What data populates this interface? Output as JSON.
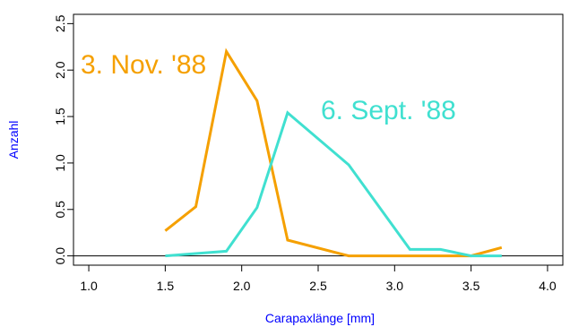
{
  "chart_data": {
    "type": "line",
    "xlabel": "Carapaxlänge [mm]",
    "ylabel": "Anzahl",
    "xlim": [
      0.9,
      4.1
    ],
    "ylim": [
      -0.1,
      2.6
    ],
    "x_ticks": [
      "1.0",
      "1.5",
      "2.0",
      "2.5",
      "3.0",
      "3.5",
      "4.0"
    ],
    "y_ticks": [
      "0.0",
      "0.5",
      "1.0",
      "1.5",
      "2.0",
      "2.5"
    ],
    "reference_line_y": 0,
    "grid": false,
    "series": [
      {
        "name": "3. Nov. '88",
        "color": "#F5A000",
        "x": [
          1.5,
          1.7,
          1.9,
          2.1,
          2.3,
          2.7,
          3.1,
          3.5,
          3.7
        ],
        "y": [
          0.27,
          0.53,
          2.2,
          1.67,
          0.17,
          0.0,
          0.0,
          0.0,
          0.09
        ]
      },
      {
        "name": "6. Sept. '88",
        "color": "#40E0D0",
        "x": [
          1.5,
          1.9,
          2.1,
          2.3,
          2.7,
          3.1,
          3.3,
          3.5,
          3.7
        ],
        "y": [
          0.0,
          0.05,
          0.52,
          1.54,
          0.98,
          0.07,
          0.07,
          0.0,
          0.0
        ]
      }
    ]
  }
}
